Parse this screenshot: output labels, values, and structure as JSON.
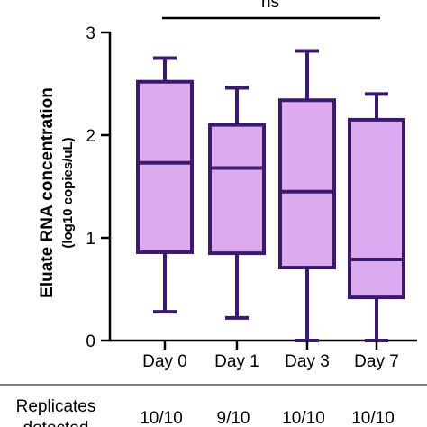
{
  "chart_data": {
    "type": "box",
    "title": "",
    "ylabel": "Eluate RNA concentration",
    "ylabel_unit": "(log10 copies/uL)",
    "ylim": [
      0,
      3
    ],
    "yticks": [
      "0",
      "1",
      "2",
      "3"
    ],
    "categories": [
      "Day 0",
      "Day 1",
      "Day 3",
      "Day 7"
    ],
    "boxes": [
      {
        "category": "Day 0",
        "min": 0.28,
        "q1": 0.86,
        "median": 1.73,
        "q3": 2.52,
        "max": 2.75
      },
      {
        "category": "Day 1",
        "min": 0.22,
        "q1": 0.85,
        "median": 1.68,
        "q3": 2.1,
        "max": 2.46
      },
      {
        "category": "Day 3",
        "min": 0.0,
        "q1": 0.71,
        "median": 1.45,
        "q3": 2.34,
        "max": 2.82
      },
      {
        "category": "Day 7",
        "min": 0.0,
        "q1": 0.42,
        "median": 0.79,
        "q3": 2.15,
        "max": 2.4
      }
    ],
    "significance": "ns",
    "box_fill": "#dcaaf0",
    "box_stroke": "#3b1a6e",
    "grid": false,
    "table": {
      "row_label_line1": "Replicates",
      "row_label_line2": "detected",
      "values": [
        "10/10",
        "9/10",
        "10/10",
        "10/10"
      ]
    }
  }
}
